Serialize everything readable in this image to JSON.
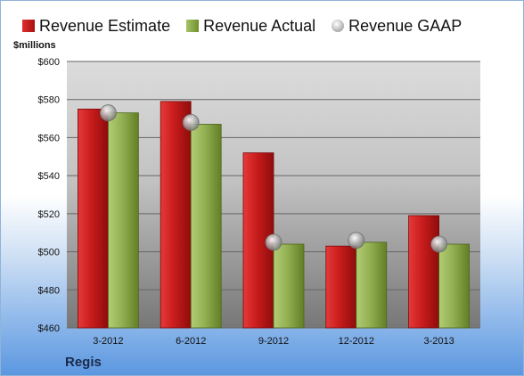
{
  "chart_data": {
    "type": "bar",
    "categories": [
      "3-2012",
      "6-2012",
      "9-2012",
      "12-2012",
      "3-2013"
    ],
    "series": [
      {
        "name": "Revenue Estimate",
        "values": [
          575,
          579,
          552,
          503,
          519
        ],
        "color": "#c41f1f"
      },
      {
        "name": "Revenue Actual",
        "values": [
          573,
          567,
          504,
          505,
          504
        ],
        "color": "#8aa84a"
      },
      {
        "name": "Revenue GAAP",
        "values": [
          573,
          568,
          505,
          506,
          504
        ],
        "marker": "circle",
        "color": "#b0b0b0"
      }
    ],
    "ylabel": "$millions",
    "ylim": [
      460,
      600
    ],
    "yticks": [
      "$460",
      "$480",
      "$500",
      "$520",
      "$540",
      "$560",
      "$580",
      "$600"
    ],
    "grid": true,
    "legend": "top",
    "company": "Regis"
  }
}
